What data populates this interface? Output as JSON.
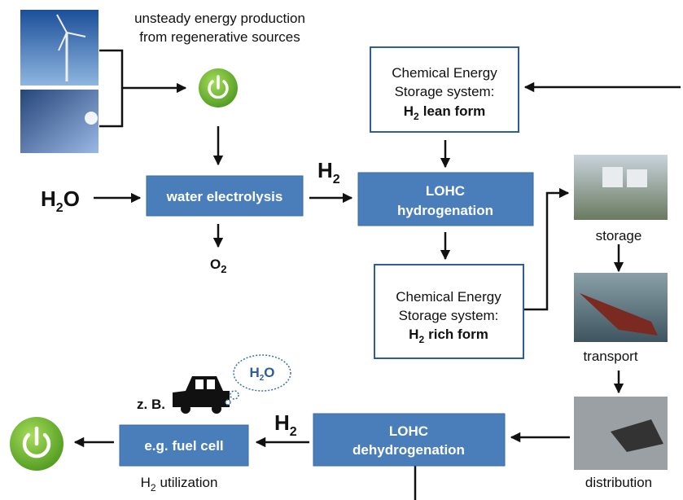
{
  "source_note": {
    "line1": "unsteady energy production",
    "line2": "from regenerative sources"
  },
  "input": {
    "base": "H",
    "sub": "2",
    "tail": "O"
  },
  "electrolysis": "water electrolysis",
  "oxygen": {
    "base": "O",
    "sub": "2"
  },
  "h2_top": {
    "base": "H",
    "sub": "2"
  },
  "lean": {
    "line1": "Chemical Energy",
    "line2": "Storage system:",
    "base": "H",
    "sub": "2",
    "tail": "lean form"
  },
  "hydrogenation": {
    "line1": "LOHC",
    "line2": "hydrogenation"
  },
  "rich": {
    "line1": "Chemical Energy",
    "line2": "Storage system:",
    "base": "H",
    "sub": "2",
    "tail": "rich form"
  },
  "logistics": [
    "storage",
    "transport",
    "distribution"
  ],
  "dehydrogenation": {
    "line1": "LOHC",
    "line2": "dehydrogenation"
  },
  "h2_bottom": {
    "base": "H",
    "sub": "2"
  },
  "fuel_cell": "e.g. fuel cell",
  "example": "z. B.",
  "exhaust": {
    "base": "H",
    "sub": "2",
    "tail": "O"
  },
  "utilization": {
    "base": "H",
    "sub": "2",
    "tail": "utilization"
  }
}
